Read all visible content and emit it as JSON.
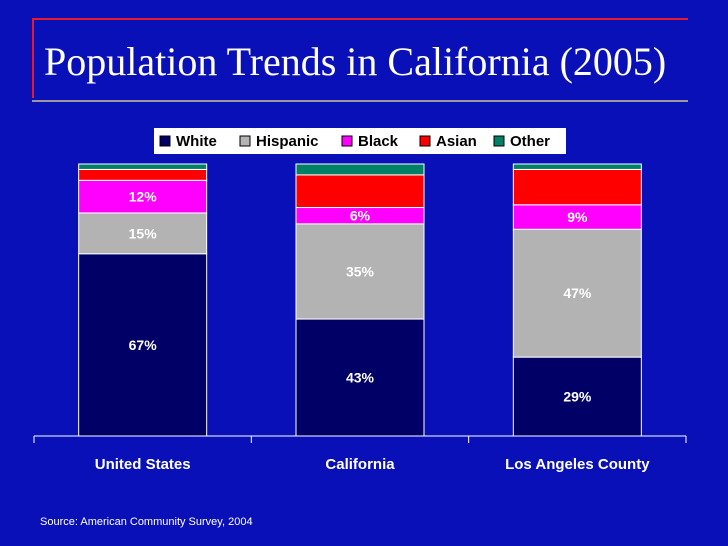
{
  "page": {
    "title": "Population Trends in California (2005)",
    "source": "Source: American Community Survey, 2004"
  },
  "chart_data": {
    "type": "bar",
    "stacked": true,
    "title": "Population Trends in California (2005)",
    "categories": [
      "United States",
      "California",
      "Los Angeles County"
    ],
    "series": [
      {
        "name": "White",
        "color": "#000066",
        "values": [
          67,
          43,
          29
        ],
        "labels": [
          "67%",
          "43%",
          "29%"
        ]
      },
      {
        "name": "Hispanic",
        "color": "#b3b3b3",
        "values": [
          15,
          35,
          47
        ],
        "labels": [
          "15%",
          "35%",
          "47%"
        ]
      },
      {
        "name": "Black",
        "color": "#ff00ff",
        "values": [
          12,
          6,
          9
        ],
        "labels": [
          "12%",
          "6%",
          "9%"
        ]
      },
      {
        "name": "Asian",
        "color": "#ff0000",
        "values": [
          4,
          12,
          13
        ],
        "labels": [
          "",
          "",
          ""
        ]
      },
      {
        "name": "Other",
        "color": "#008066",
        "values": [
          2,
          4,
          2
        ],
        "labels": [
          "",
          "",
          ""
        ]
      }
    ],
    "ylim": [
      0,
      100
    ],
    "legend": "top",
    "xlabel": "",
    "ylabel": ""
  }
}
